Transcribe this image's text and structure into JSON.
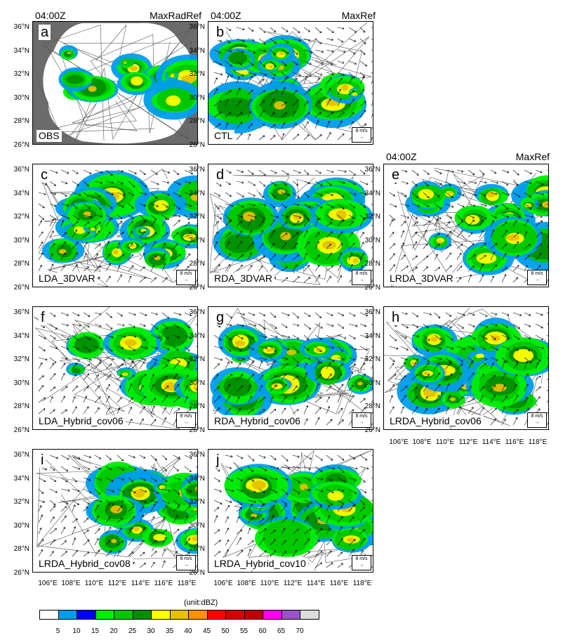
{
  "headers": {
    "time": "04:00Z",
    "obs_title": "MaxRadRef",
    "fcst_title": "MaxRef"
  },
  "panels": [
    {
      "id": "a",
      "name": "OBS",
      "obs": true,
      "seed": 3
    },
    {
      "id": "b",
      "name": "CTL",
      "seed": 7
    },
    {
      "id": "c",
      "name": "LDA_3DVAR",
      "seed": 11
    },
    {
      "id": "d",
      "name": "RDA_3DVAR",
      "seed": 13
    },
    {
      "id": "e",
      "name": "LRDA_3DVAR",
      "seed": 17
    },
    {
      "id": "f",
      "name": "LDA_Hybrid_cov06",
      "seed": 19
    },
    {
      "id": "g",
      "name": "RDA_Hybrid_cov06",
      "seed": 23
    },
    {
      "id": "h",
      "name": "LRDA_Hybrid_cov06",
      "seed": 29
    },
    {
      "id": "i",
      "name": "LRDA_Hybrid_cov08",
      "seed": 31
    },
    {
      "id": "j",
      "name": "LRDA_Hybrid_cov10",
      "seed": 37
    }
  ],
  "ref_vector": "8 m/s",
  "lat_labels": [
    "36°N",
    "34°N",
    "32°N",
    "30°N",
    "28°N",
    "26°N"
  ],
  "lon_labels": [
    "106°E",
    "108°E",
    "110°E",
    "112°E",
    "114°E",
    "116°E",
    "118°E"
  ],
  "unit": "(unit:dBZ)",
  "colorbar": {
    "ticks": [
      "5",
      "10",
      "15",
      "20",
      "25",
      "30",
      "35",
      "40",
      "45",
      "50",
      "55",
      "60",
      "65",
      "70"
    ],
    "colors": [
      "#ffffff",
      "#009dec",
      "#0000f6",
      "#00ef00",
      "#00c700",
      "#008f00",
      "#ffff00",
      "#e7c000",
      "#ff9000",
      "#ff0000",
      "#d60000",
      "#c00000",
      "#ff00f0",
      "#9955c8",
      "#dcdcdc"
    ]
  }
}
